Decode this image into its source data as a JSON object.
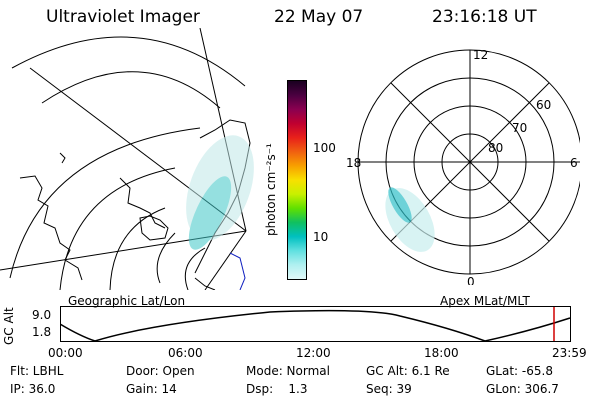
{
  "header": {
    "instrument": "Ultraviolet Imager",
    "date": "22 May 07",
    "time": "23:16:18 UT"
  },
  "colorbar": {
    "unit_label": "photon cm⁻²s⁻¹",
    "ticks": [
      "100",
      "10"
    ],
    "colors": [
      "#1a0020",
      "#4a0040",
      "#8a0050",
      "#c00030",
      "#e8201a",
      "#f06010",
      "#f8a000",
      "#f8e000",
      "#c8f000",
      "#60e000",
      "#10c060",
      "#00c0c0",
      "#60e0e0",
      "#b0f0f0",
      "#e0f8f8"
    ]
  },
  "panels": {
    "left_label": "Geographic Lat/Lon",
    "right_label": "Apex MLat/MLT",
    "polar": {
      "mlt_labels": [
        "12",
        "18",
        "6",
        "0"
      ],
      "lat_labels": [
        "60",
        "70",
        "80"
      ]
    }
  },
  "altitude_plot": {
    "ylabel": "GC Alt",
    "yticks": [
      "9.0",
      "1.8"
    ],
    "xticks": [
      "00:00",
      "06:00",
      "12:00",
      "18:00",
      "23:59"
    ],
    "current_time_color": "#d00000"
  },
  "info": {
    "flt": "Flt: LBHL",
    "door": "Door: Open",
    "mode": "Mode: Normal",
    "gcalt": "GC Alt: 6.1 Re",
    "glat": "GLat: -65.8",
    "ip": "IP: 36.0",
    "gain": "Gain: 14",
    "dsp": "Dsp:    1.3",
    "seq": "Seq: 39",
    "glon": "GLon: 306.7"
  }
}
